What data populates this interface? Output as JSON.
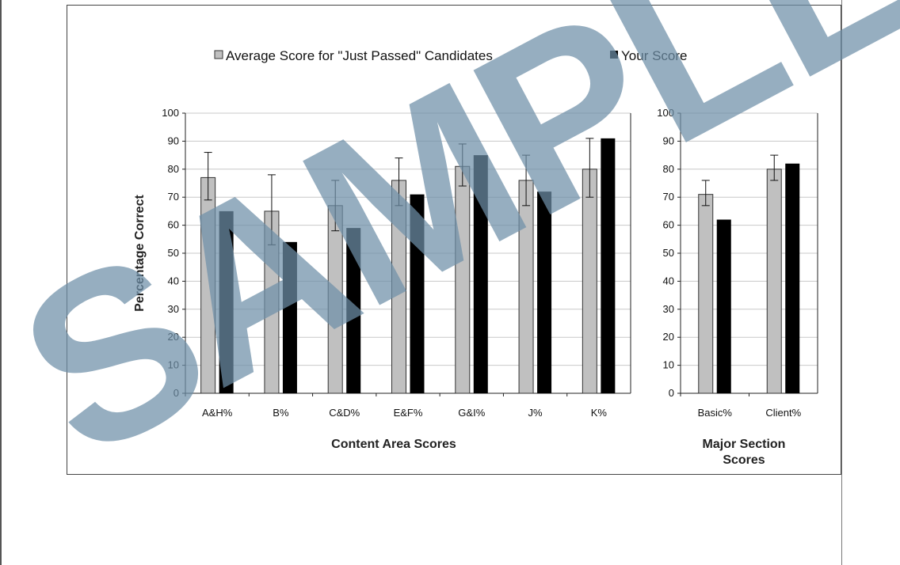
{
  "watermark": "SAMPLE",
  "colors": {
    "average": "#c0c0c0",
    "yours": "#000000",
    "watermark": "#6d8fa8",
    "grid": "#c8c8c8"
  },
  "legend": {
    "average_label": "Average Score for \"Just Passed\" Candidates",
    "yours_label": "Your Score",
    "placement": "top-center"
  },
  "chart_data": [
    {
      "type": "bar",
      "title": "",
      "xlabel": "Content Area Scores",
      "ylabel": "Percentage Correct",
      "ylim": [
        0,
        100
      ],
      "yticks": [
        0,
        10,
        20,
        30,
        40,
        50,
        60,
        70,
        80,
        90,
        100
      ],
      "grid": true,
      "categories": [
        "A&H%",
        "B%",
        "C&D%",
        "E&F%",
        "G&I%",
        "J%",
        "K%"
      ],
      "series": [
        {
          "name": "Average Score for \"Just Passed\" Candidates",
          "values": [
            77,
            65,
            67,
            76,
            81,
            76,
            80
          ],
          "error_low": [
            69,
            53,
            58,
            67,
            74,
            67,
            70
          ],
          "error_high": [
            86,
            78,
            76,
            84,
            89,
            85,
            91
          ]
        },
        {
          "name": "Your Score",
          "values": [
            65,
            54,
            59,
            71,
            85,
            72,
            91
          ]
        }
      ]
    },
    {
      "type": "bar",
      "title": "",
      "xlabel": "Major Section Scores",
      "ylabel": "",
      "ylim": [
        0,
        100
      ],
      "yticks": [
        0,
        10,
        20,
        30,
        40,
        50,
        60,
        70,
        80,
        90,
        100
      ],
      "grid": true,
      "categories": [
        "Basic%",
        "Client%"
      ],
      "series": [
        {
          "name": "Average Score for \"Just Passed\" Candidates",
          "values": [
            71,
            80
          ],
          "error_low": [
            67,
            76
          ],
          "error_high": [
            76,
            85
          ]
        },
        {
          "name": "Your Score",
          "values": [
            62,
            82
          ]
        }
      ]
    }
  ]
}
